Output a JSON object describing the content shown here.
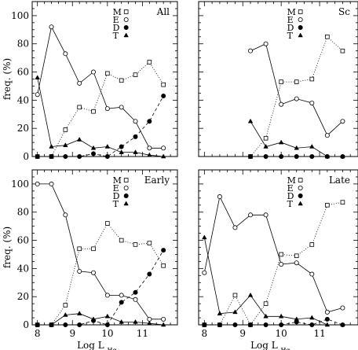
{
  "chart_data": [
    {
      "type": "line",
      "panel_label": "All",
      "ylabel": "freq. (%)",
      "xlabel": "",
      "xlim": [
        7.85,
        12.0
      ],
      "ylim": [
        0,
        110
      ],
      "show_xticklabels": false,
      "show_yticklabels": true,
      "legend": [
        "M",
        "E",
        "D",
        "T"
      ],
      "series": [
        {
          "name": "M",
          "marker": "square",
          "dash": "dotted",
          "x": [
            8.0,
            8.4,
            8.8,
            9.2,
            9.6,
            10.0,
            10.4,
            10.8,
            11.2,
            11.6
          ],
          "y": [
            0,
            0,
            19,
            35,
            32,
            59,
            54,
            58,
            67,
            51
          ]
        },
        {
          "name": "E",
          "marker": "circle-open",
          "dash": "solid",
          "x": [
            8.0,
            8.4,
            8.8,
            9.2,
            9.6,
            10.0,
            10.4,
            10.8,
            11.2,
            11.6
          ],
          "y": [
            44,
            92,
            73,
            52,
            60,
            34,
            35,
            25,
            6,
            6
          ]
        },
        {
          "name": "D",
          "marker": "circle-filled",
          "dash": "dashed",
          "x": [
            8.0,
            8.4,
            8.8,
            9.2,
            9.6,
            10.0,
            10.4,
            10.8,
            11.2,
            11.6
          ],
          "y": [
            0,
            0,
            0,
            0,
            2,
            0,
            7,
            14,
            25,
            43
          ]
        },
        {
          "name": "T",
          "marker": "triangle",
          "dash": "solid",
          "x": [
            8.0,
            8.4,
            8.8,
            9.2,
            9.6,
            10.0,
            10.4,
            10.8,
            11.2,
            11.6
          ],
          "y": [
            56,
            7,
            8,
            12,
            6,
            7,
            3,
            3,
            1,
            0
          ]
        }
      ]
    },
    {
      "type": "line",
      "panel_label": "Sc",
      "ylabel": "",
      "xlabel": "",
      "xlim": [
        7.85,
        12.0
      ],
      "ylim": [
        0,
        110
      ],
      "show_xticklabels": false,
      "show_yticklabels": false,
      "legend": [
        "M",
        "E",
        "D",
        "T"
      ],
      "series": [
        {
          "name": "M",
          "marker": "square",
          "dash": "dotted",
          "x": [
            9.2,
            9.6,
            10.0,
            10.4,
            10.8,
            11.2,
            11.6
          ],
          "y": [
            0,
            13,
            53,
            53,
            55,
            85,
            75
          ]
        },
        {
          "name": "E",
          "marker": "circle-open",
          "dash": "solid",
          "x": [
            9.2,
            9.6,
            10.0,
            10.4,
            10.8,
            11.2,
            11.6
          ],
          "y": [
            75,
            80,
            37,
            41,
            38,
            15,
            25
          ]
        },
        {
          "name": "D",
          "marker": "circle-filled",
          "dash": "dashed",
          "x": [
            9.2,
            9.6,
            10.0,
            10.4,
            10.8,
            11.2,
            11.6
          ],
          "y": [
            0,
            0,
            0,
            0,
            0,
            0,
            0
          ]
        },
        {
          "name": "T",
          "marker": "triangle",
          "dash": "solid",
          "x": [
            9.2,
            9.6,
            10.0,
            10.4,
            10.8,
            11.2,
            11.6
          ],
          "y": [
            25,
            7,
            10,
            6,
            7,
            0,
            0
          ]
        }
      ]
    },
    {
      "type": "line",
      "panel_label": "Early",
      "ylabel": "freq. (%)",
      "xlabel": "Log L",
      "xlim": [
        7.85,
        12.0
      ],
      "ylim": [
        0,
        110
      ],
      "show_xticklabels": true,
      "show_yticklabels": true,
      "xticklabels": [
        "8",
        "9",
        "10",
        "11"
      ],
      "legend": [
        "M",
        "E",
        "D",
        "T"
      ],
      "series": [
        {
          "name": "M",
          "marker": "square",
          "dash": "dotted",
          "x": [
            8.0,
            8.4,
            8.8,
            9.2,
            9.6,
            10.0,
            10.4,
            10.8,
            11.2,
            11.6
          ],
          "y": [
            0,
            0,
            14,
            54,
            54,
            72,
            60,
            57,
            58,
            42
          ]
        },
        {
          "name": "E",
          "marker": "circle-open",
          "dash": "solid",
          "x": [
            8.0,
            8.4,
            8.8,
            9.2,
            9.6,
            10.0,
            10.4,
            10.8,
            11.2,
            11.6
          ],
          "y": [
            100,
            100,
            78,
            38,
            37,
            21,
            21,
            18,
            4,
            4
          ]
        },
        {
          "name": "D",
          "marker": "circle-filled",
          "dash": "dashed",
          "x": [
            8.0,
            8.4,
            8.8,
            9.2,
            9.6,
            10.0,
            10.4,
            10.8,
            11.2,
            11.6
          ],
          "y": [
            0,
            0,
            0,
            0,
            3,
            0,
            16,
            23,
            36,
            53
          ]
        },
        {
          "name": "T",
          "marker": "triangle",
          "dash": "solid",
          "x": [
            8.0,
            8.4,
            8.8,
            9.2,
            9.6,
            10.0,
            10.4,
            10.8,
            11.2,
            11.6
          ],
          "y": [
            0,
            0,
            7,
            8,
            4,
            6,
            2,
            2,
            1,
            0
          ]
        }
      ]
    },
    {
      "type": "line",
      "panel_label": "Late",
      "ylabel": "",
      "xlabel": "Log L",
      "xlim": [
        7.85,
        12.0
      ],
      "ylim": [
        0,
        110
      ],
      "show_xticklabels": true,
      "show_yticklabels": false,
      "xticklabels": [
        "8",
        "9",
        "10",
        "11"
      ],
      "legend": [
        "M",
        "E",
        "D",
        "T"
      ],
      "series": [
        {
          "name": "M",
          "marker": "square",
          "dash": "dotted",
          "x": [
            8.0,
            8.4,
            8.8,
            9.2,
            9.6,
            10.0,
            10.4,
            10.8,
            11.2,
            11.6
          ],
          "y": [
            0,
            0,
            21,
            0,
            15,
            50,
            49,
            57,
            85,
            87
          ]
        },
        {
          "name": "E",
          "marker": "circle-open",
          "dash": "solid",
          "x": [
            8.0,
            8.4,
            8.8,
            9.2,
            9.6,
            10.0,
            10.4,
            10.8,
            11.2,
            11.6
          ],
          "y": [
            37,
            91,
            69,
            78,
            78,
            43,
            44,
            36,
            9,
            12
          ]
        },
        {
          "name": "D",
          "marker": "circle-filled",
          "dash": "dashed",
          "x": [
            8.0,
            8.4,
            8.8,
            9.2,
            9.6,
            10.0,
            10.4,
            10.8,
            11.2,
            11.6
          ],
          "y": [
            0,
            0,
            0,
            0,
            0,
            0,
            2,
            0,
            4,
            0
          ]
        },
        {
          "name": "T",
          "marker": "triangle",
          "dash": "solid",
          "x": [
            8.0,
            8.4,
            8.8,
            9.2,
            9.6,
            10.0,
            10.4,
            10.8,
            11.2,
            11.6
          ],
          "y": [
            62,
            8,
            9,
            21,
            6,
            6,
            4,
            5,
            0,
            0
          ]
        }
      ]
    }
  ],
  "y_ticks": [
    0,
    20,
    40,
    60,
    80,
    100
  ],
  "x_ticks": [
    8,
    9,
    10,
    11
  ],
  "xlabel_subscript": "Hα"
}
